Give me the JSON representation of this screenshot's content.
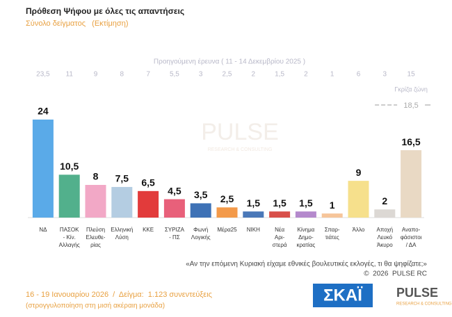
{
  "chart_data": {
    "type": "bar",
    "title": "Πρόθεση Ψήφου με όλες τις απαντήσεις",
    "subtitle": "Σύνολο δείγματος   (Εκτίμηση)",
    "previous_title": "Προηγούμενη έρευνα ( 11 - 14 Δεκεμβρίου 2025 )",
    "categories": [
      [
        "ΝΔ"
      ],
      [
        "ΠΑΣΟΚ",
        "- Κίν.",
        "Αλλαγής"
      ],
      [
        "Πλεύση",
        "Ελευθε-",
        "ρίας"
      ],
      [
        "Ελληνική",
        "Λύση"
      ],
      [
        "ΚΚΕ"
      ],
      [
        "ΣΥΡΙΖΑ",
        "- ΠΣ"
      ],
      [
        "Φωνή",
        "Λογικής"
      ],
      [
        "Μέρα25"
      ],
      [
        "ΝΙΚΗ"
      ],
      [
        "Νέα",
        "Αρι-",
        "στερά"
      ],
      [
        "Κίνημα",
        "Δημο-",
        "κρατίας"
      ],
      [
        "Σπαρ-",
        "τιάτες"
      ],
      [
        "Άλλο"
      ],
      [
        "Αποχή",
        "Λευκό",
        "Άκυρο"
      ],
      [
        "Αναπο-",
        "φάσιστοι",
        "/ ΔΑ"
      ]
    ],
    "values": [
      24,
      10.5,
      8,
      7.5,
      6.5,
      4.5,
      3.5,
      2.5,
      1.5,
      1.5,
      1.5,
      1,
      9,
      2,
      16.5
    ],
    "value_labels": [
      "24",
      "10,5",
      "8",
      "7,5",
      "6,5",
      "4,5",
      "3,5",
      "2,5",
      "1,5",
      "1,5",
      "1,5",
      "1",
      "9",
      "2",
      "16,5"
    ],
    "colors": [
      "#5aaae8",
      "#52b08c",
      "#f2a8c6",
      "#b4cde2",
      "#e23b3b",
      "#e8607a",
      "#3e72b6",
      "#f39a4a",
      "#4a78b8",
      "#d8504a",
      "#b489cc",
      "#f6c59a",
      "#f6e08c",
      "#dcd8d4",
      "#e9d9c4"
    ],
    "previous_values": [
      23.5,
      11,
      9,
      8,
      7,
      5.5,
      3,
      2.5,
      2,
      1.5,
      2,
      1,
      6,
      3,
      15
    ],
    "previous_labels": [
      "23,5",
      "11",
      "9",
      "8",
      "7",
      "5,5",
      "3",
      "2,5",
      "2",
      "1,5",
      "2",
      "1",
      "6",
      "3",
      "15"
    ],
    "grey_zone": {
      "label": "Γκρίζα ζώνη",
      "value": 18.5,
      "value_label": "18,5"
    },
    "ylim": [
      0,
      24
    ],
    "watermark": "PULSE",
    "watermark_sub": "RESEARCH & CONSULTING",
    "question": "«Αν την επόμενη Κυριακή είχαμε εθνικές βουλευτικές εκλογές, τι θα ψηφίζατε;»",
    "copyright": "©  2026  PULSE RC",
    "footer": "16 - 19 Ιανουαρίου 2026  /  Δείγμα:  1.123 συνεντεύξεις",
    "footer_note": "(στρογγυλοποίηση στη μισή ακέραιη μονάδα)",
    "logo_channel": "ΣΚΑΪ",
    "logo_pulse": "PULSE",
    "logo_pulse_sub": "RESEARCH & CONSULTING"
  }
}
